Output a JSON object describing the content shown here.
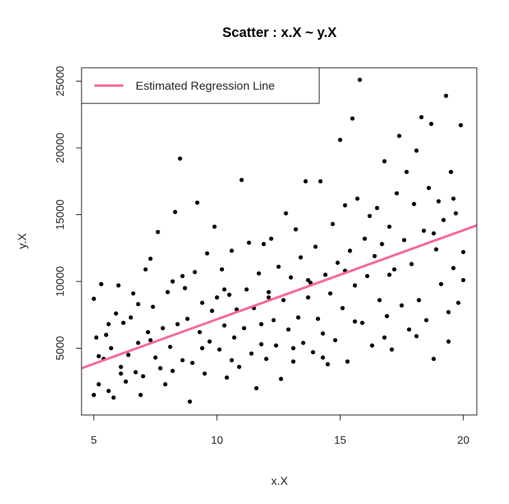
{
  "chart_data": {
    "type": "scatter",
    "title": "Scatter : x.X ~ y.X",
    "xlabel": "x.X",
    "ylabel": "y.X",
    "xlim": [
      4.5,
      20.55
    ],
    "ylim": [
      0,
      26000
    ],
    "x_ticks": [
      5,
      10,
      15,
      20
    ],
    "y_ticks": [
      5000,
      10000,
      15000,
      20000,
      25000
    ],
    "grid": false,
    "legend": {
      "position": "top-left",
      "entries": [
        {
          "label": "Estimated Regression Line",
          "color": "#f4679b"
        }
      ]
    },
    "series": [
      {
        "kind": "points",
        "color": "#000000",
        "points": [
          [
            5.0,
            8700
          ],
          [
            5.1,
            5800
          ],
          [
            5.2,
            2300
          ],
          [
            5.0,
            1500
          ],
          [
            5.3,
            9800
          ],
          [
            5.4,
            4200
          ],
          [
            5.5,
            6000
          ],
          [
            5.6,
            1800
          ],
          [
            5.7,
            5000
          ],
          [
            5.8,
            1300
          ],
          [
            5.9,
            7600
          ],
          [
            6.0,
            9700
          ],
          [
            6.1,
            3600
          ],
          [
            6.2,
            6900
          ],
          [
            6.3,
            2500
          ],
          [
            6.4,
            4500
          ],
          [
            6.5,
            7300
          ],
          [
            6.6,
            9100
          ],
          [
            6.7,
            3200
          ],
          [
            6.8,
            5400
          ],
          [
            6.9,
            1500
          ],
          [
            7.0,
            2900
          ],
          [
            7.1,
            10900
          ],
          [
            7.2,
            6200
          ],
          [
            7.3,
            11700
          ],
          [
            7.4,
            8100
          ],
          [
            7.5,
            4300
          ],
          [
            7.6,
            13700
          ],
          [
            7.7,
            3500
          ],
          [
            7.8,
            6500
          ],
          [
            7.9,
            2300
          ],
          [
            8.0,
            9200
          ],
          [
            8.1,
            5100
          ],
          [
            8.2,
            10000
          ],
          [
            8.3,
            15200
          ],
          [
            8.4,
            6800
          ],
          [
            8.5,
            19200
          ],
          [
            8.6,
            4100
          ],
          [
            8.7,
            9500
          ],
          [
            8.8,
            7200
          ],
          [
            8.9,
            1000
          ],
          [
            9.0,
            3900
          ],
          [
            9.1,
            10700
          ],
          [
            9.2,
            15900
          ],
          [
            9.3,
            6200
          ],
          [
            9.4,
            8400
          ],
          [
            9.5,
            3100
          ],
          [
            9.6,
            12100
          ],
          [
            9.7,
            5500
          ],
          [
            9.8,
            7800
          ],
          [
            9.9,
            14100
          ],
          [
            10.0,
            8800
          ],
          [
            10.1,
            4900
          ],
          [
            10.2,
            10900
          ],
          [
            10.3,
            6700
          ],
          [
            10.4,
            2800
          ],
          [
            10.5,
            9000
          ],
          [
            10.6,
            12300
          ],
          [
            10.7,
            5800
          ],
          [
            10.8,
            7900
          ],
          [
            10.9,
            3600
          ],
          [
            11.0,
            17600
          ],
          [
            11.1,
            6500
          ],
          [
            11.2,
            9400
          ],
          [
            11.3,
            12900
          ],
          [
            11.4,
            4600
          ],
          [
            11.5,
            8000
          ],
          [
            11.6,
            2000
          ],
          [
            11.7,
            10600
          ],
          [
            11.8,
            6800
          ],
          [
            11.9,
            12800
          ],
          [
            12.0,
            4200
          ],
          [
            12.1,
            9200
          ],
          [
            12.2,
            13200
          ],
          [
            12.3,
            7100
          ],
          [
            12.4,
            5200
          ],
          [
            12.5,
            11100
          ],
          [
            12.6,
            2700
          ],
          [
            12.7,
            8600
          ],
          [
            12.8,
            15100
          ],
          [
            12.9,
            6400
          ],
          [
            13.0,
            10300
          ],
          [
            13.1,
            4000
          ],
          [
            13.2,
            13900
          ],
          [
            13.3,
            7300
          ],
          [
            13.4,
            11800
          ],
          [
            13.5,
            5400
          ],
          [
            13.6,
            17500
          ],
          [
            13.7,
            8800
          ],
          [
            13.8,
            9900
          ],
          [
            13.9,
            4700
          ],
          [
            14.0,
            12600
          ],
          [
            14.1,
            7200
          ],
          [
            14.2,
            17500
          ],
          [
            14.3,
            6100
          ],
          [
            14.4,
            10500
          ],
          [
            14.5,
            3800
          ],
          [
            14.6,
            9100
          ],
          [
            14.7,
            14300
          ],
          [
            14.8,
            5600
          ],
          [
            14.9,
            11400
          ],
          [
            15.0,
            20600
          ],
          [
            15.1,
            8000
          ],
          [
            15.2,
            15700
          ],
          [
            15.3,
            4000
          ],
          [
            15.4,
            12300
          ],
          [
            15.5,
            22200
          ],
          [
            15.6,
            9700
          ],
          [
            15.7,
            16200
          ],
          [
            15.8,
            25100
          ],
          [
            15.9,
            6900
          ],
          [
            16.0,
            13200
          ],
          [
            16.1,
            10400
          ],
          [
            16.2,
            14900
          ],
          [
            16.3,
            5200
          ],
          [
            16.4,
            11900
          ],
          [
            16.5,
            15500
          ],
          [
            16.6,
            8600
          ],
          [
            16.7,
            12800
          ],
          [
            16.8,
            19000
          ],
          [
            16.9,
            7400
          ],
          [
            17.0,
            14100
          ],
          [
            17.1,
            4900
          ],
          [
            17.2,
            10900
          ],
          [
            17.3,
            16600
          ],
          [
            17.4,
            20900
          ],
          [
            17.5,
            8200
          ],
          [
            17.6,
            13100
          ],
          [
            17.7,
            18200
          ],
          [
            17.8,
            6400
          ],
          [
            17.9,
            11300
          ],
          [
            18.0,
            15800
          ],
          [
            18.1,
            19800
          ],
          [
            18.2,
            8600
          ],
          [
            18.3,
            22300
          ],
          [
            18.4,
            13800
          ],
          [
            18.5,
            7100
          ],
          [
            18.6,
            17000
          ],
          [
            18.7,
            21800
          ],
          [
            18.8,
            4200
          ],
          [
            18.9,
            12400
          ],
          [
            19.0,
            16000
          ],
          [
            19.1,
            9800
          ],
          [
            19.2,
            14600
          ],
          [
            19.3,
            23900
          ],
          [
            19.4,
            5500
          ],
          [
            19.5,
            18200
          ],
          [
            19.6,
            11000
          ],
          [
            19.7,
            15100
          ],
          [
            19.8,
            8400
          ],
          [
            19.9,
            21700
          ],
          [
            20.0,
            10100
          ],
          [
            5.2,
            4400
          ],
          [
            6.1,
            3100
          ],
          [
            7.3,
            5600
          ],
          [
            8.2,
            3300
          ],
          [
            9.4,
            5000
          ],
          [
            10.6,
            4100
          ],
          [
            11.8,
            5300
          ],
          [
            13.1,
            5000
          ],
          [
            14.3,
            4300
          ],
          [
            15.6,
            7000
          ],
          [
            16.8,
            5800
          ],
          [
            18.1,
            5900
          ],
          [
            19.4,
            7700
          ],
          [
            20.0,
            12200
          ],
          [
            5.6,
            6800
          ],
          [
            6.8,
            8300
          ],
          [
            8.6,
            10400
          ],
          [
            10.3,
            9400
          ],
          [
            12.1,
            8800
          ],
          [
            13.7,
            10100
          ],
          [
            15.2,
            10800
          ],
          [
            17.0,
            10500
          ],
          [
            18.8,
            13600
          ],
          [
            19.6,
            16200
          ]
        ]
      },
      {
        "kind": "line",
        "name": "Estimated Regression Line",
        "color": "#f4679b",
        "x": [
          4.5,
          20.55
        ],
        "y": [
          3500,
          14200
        ]
      }
    ]
  }
}
